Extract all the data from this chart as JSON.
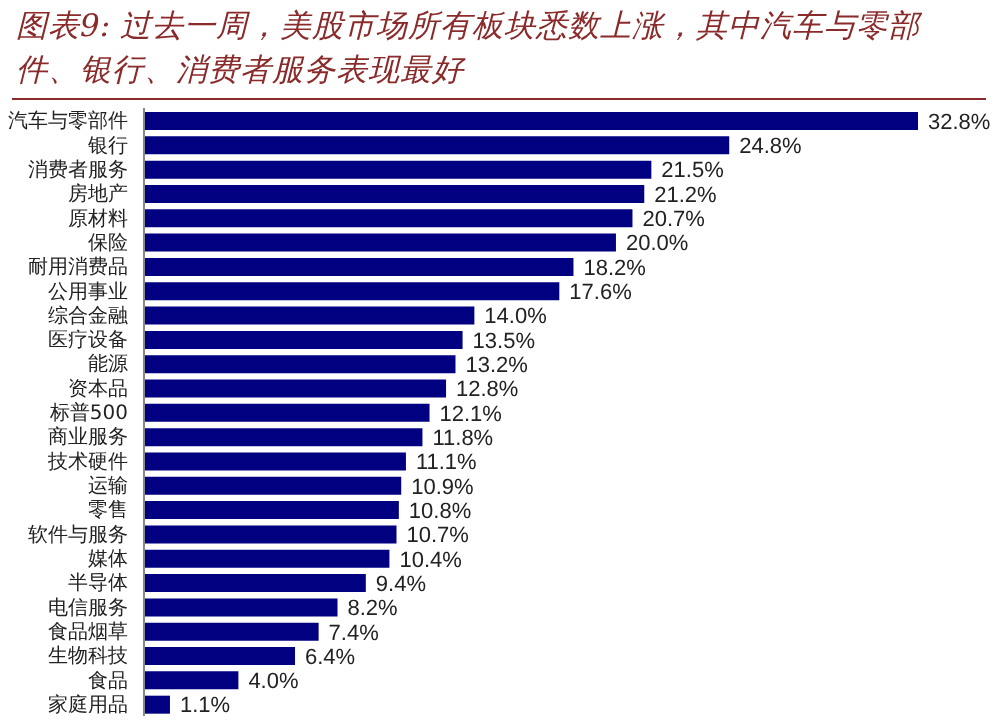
{
  "chart_data": {
    "type": "bar",
    "orientation": "horizontal",
    "title": "图表9: 过去一周，美股市场所有板块悉数上涨，其中汽车与零部件、银行、消费者服务表现最好",
    "categories": [
      "汽车与零部件",
      "银行",
      "消费者服务",
      "房地产",
      "原材料",
      "保险",
      "耐用消费品",
      "公用事业",
      "综合金融",
      "医疗设备",
      "能源",
      "资本品",
      "标普500",
      "商业服务",
      "技术硬件",
      "运输",
      "零售",
      "软件与服务",
      "媒体",
      "半导体",
      "电信服务",
      "食品烟草",
      "生物科技",
      "食品",
      "家庭用品"
    ],
    "values": [
      32.8,
      24.8,
      21.5,
      21.2,
      20.7,
      20.0,
      18.2,
      17.6,
      14.0,
      13.5,
      13.2,
      12.8,
      12.1,
      11.8,
      11.1,
      10.9,
      10.8,
      10.7,
      10.4,
      9.4,
      8.2,
      7.4,
      6.4,
      4.0,
      1.1
    ],
    "value_labels": [
      "32.8%",
      "24.8%",
      "21.5%",
      "21.2%",
      "20.7%",
      "20.0%",
      "18.2%",
      "17.6%",
      "14.0%",
      "13.5%",
      "13.2%",
      "12.8%",
      "12.1%",
      "11.8%",
      "11.1%",
      "10.9%",
      "10.8%",
      "10.7%",
      "10.4%",
      "9.4%",
      "8.2%",
      "7.4%",
      "6.4%",
      "4.0%",
      "1.1%"
    ],
    "color": "#000080",
    "grid": false,
    "legend": false
  }
}
